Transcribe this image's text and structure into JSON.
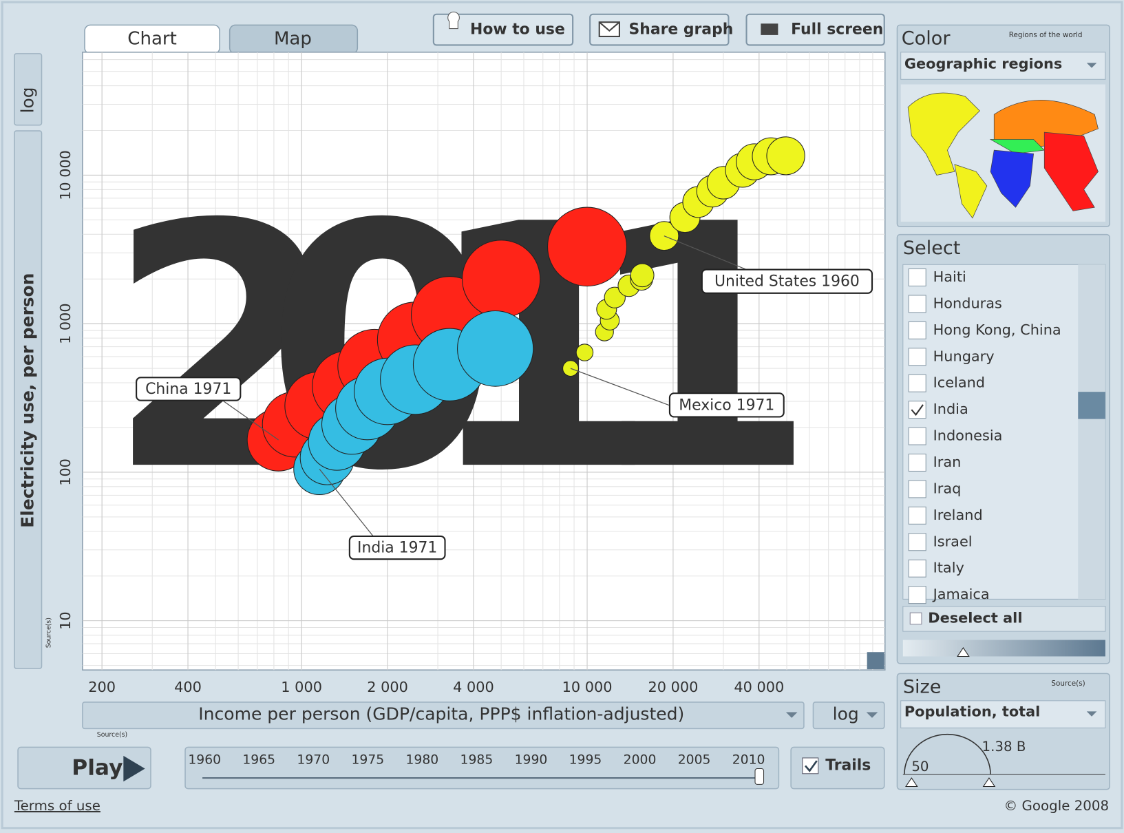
{
  "tabs": [
    "Chart",
    "Map"
  ],
  "buttons": [
    "How to use",
    "Share graph",
    "Full screen"
  ],
  "chart_data": {
    "type": "scatter",
    "watermark": "2011",
    "xlabel": "Income per person (GDP/capita, PPP$ inflation-adjusted)",
    "ylabel": "Electricity use, per person",
    "xscale": "log",
    "yscale": "log",
    "xscale_label": "log",
    "yscale_label": "log",
    "grid": true,
    "xlim": [
      171,
      110400
    ],
    "ylim": [
      4.66,
      67300
    ],
    "xticks": [
      200,
      400,
      {
        "value": 1000,
        "label": "1 000"
      },
      {
        "value": 2000,
        "label": "2 000"
      },
      {
        "value": 4000,
        "label": "4 000"
      },
      {
        "value": 10000,
        "label": "10 000"
      },
      {
        "value": 20000,
        "label": "20 000"
      },
      {
        "value": 40000,
        "label": "40 000"
      }
    ],
    "yticks": [
      10,
      100,
      {
        "value": 1000,
        "label": "1 000"
      },
      {
        "value": 10000,
        "label": "10 000"
      }
    ],
    "series": [
      {
        "color": "#ff2418",
        "x": [
          830,
          950,
          1150,
          1450,
          1800,
          2500,
          3300,
          5000,
          10000
        ],
        "values": [
          165,
          210,
          280,
          380,
          520,
          780,
          1150,
          2000,
          3300
        ],
        "sizes": [
          841000000,
          930000000,
          1000000000,
          1080000000,
          1160000000,
          1230000000,
          1270000000,
          1310000000,
          1350000000
        ]
      },
      {
        "color": "#35bde3",
        "x": [
          1155,
          1230,
          1330,
          1500,
          1700,
          2000,
          2500,
          3300,
          4770
        ],
        "values": [
          105,
          125,
          160,
          210,
          270,
          350,
          420,
          530,
          680
        ],
        "sizes": [
          570000000,
          630000000,
          700000000,
          780000000,
          870000000,
          960000000,
          1050000000,
          1140000000,
          1240000000
        ]
      },
      {
        "color": "#e6f21c",
        "x": [
          8750,
          9800,
          11500,
          12000,
          11700,
          12500,
          14000,
          15500,
          15600
        ],
        "values": [
          500,
          640,
          880,
          1050,
          1250,
          1500,
          1800,
          2000,
          2120
        ],
        "sizes": [
          53000000,
          61000000,
          70000000,
          78000000,
          86000000,
          94000000,
          101000000,
          109000000,
          117000000
        ]
      },
      {
        "color": "#eef51e",
        "x": [
          18600,
          22000,
          24500,
          27500,
          30000,
          35000,
          38500,
          44000,
          49600
        ],
        "values": [
          3900,
          5200,
          6600,
          7800,
          8900,
          10800,
          12300,
          13400,
          13500
        ],
        "sizes": [
          181000000,
          197000000,
          208000000,
          219000000,
          230000000,
          253000000,
          282000000,
          298000000,
          312000000
        ]
      }
    ],
    "annotations": [
      "China 1971",
      "India 1971",
      "Mexico 1971",
      "United States 1960"
    ]
  },
  "sources_label": "Source(s)",
  "controls": {
    "play": "Play",
    "trails": "Trails",
    "trails_checked": true,
    "years": [
      1960,
      1965,
      1970,
      1975,
      1980,
      1985,
      1990,
      1995,
      2000,
      2005,
      2010
    ]
  },
  "color_panel": {
    "title": "Color",
    "subtitle": "Regions of the world",
    "dropdown": "Geographic regions"
  },
  "select_panel": {
    "title": "Select",
    "items": [
      {
        "label": "Haiti",
        "checked": false
      },
      {
        "label": "Honduras",
        "checked": false
      },
      {
        "label": "Hong Kong, China",
        "checked": false
      },
      {
        "label": "Hungary",
        "checked": false
      },
      {
        "label": "Iceland",
        "checked": false
      },
      {
        "label": "India",
        "checked": true
      },
      {
        "label": "Indonesia",
        "checked": false
      },
      {
        "label": "Iran",
        "checked": false
      },
      {
        "label": "Iraq",
        "checked": false
      },
      {
        "label": "Ireland",
        "checked": false
      },
      {
        "label": "Israel",
        "checked": false
      },
      {
        "label": "Italy",
        "checked": false
      },
      {
        "label": "Jamaica",
        "checked": false
      }
    ],
    "deselect": "Deselect all"
  },
  "size_panel": {
    "title": "Size",
    "dropdown": "Population, total",
    "max_label": "1.38 B",
    "min_label": "50"
  },
  "footer": {
    "terms": "Terms of use",
    "copyright": "© Google 2008"
  }
}
